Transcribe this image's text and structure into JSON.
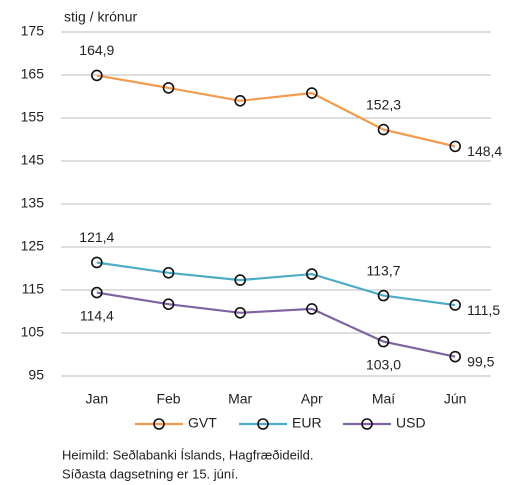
{
  "chart_data": {
    "type": "line",
    "y_label": "stig / krónur",
    "categories": [
      "Jan",
      "Feb",
      "Mar",
      "Apr",
      "Maí",
      "Jún"
    ],
    "series": [
      {
        "name": "GVT",
        "color": "#f39a4c",
        "values": [
          164.9,
          162.0,
          159.0,
          160.8,
          152.3,
          148.4
        ],
        "value_labels": [
          "164,9",
          null,
          null,
          null,
          "152,3",
          "148,4"
        ]
      },
      {
        "name": "EUR",
        "color": "#4bacc6",
        "values": [
          121.4,
          119.0,
          117.3,
          118.7,
          113.7,
          111.5
        ],
        "value_labels": [
          "121,4",
          null,
          null,
          null,
          "113,7",
          "111,5"
        ]
      },
      {
        "name": "USD",
        "color": "#8064a2",
        "values": [
          114.4,
          111.7,
          109.7,
          110.6,
          103.0,
          99.5
        ],
        "value_labels": [
          "114,4",
          null,
          null,
          null,
          "103,0",
          "99,5"
        ]
      }
    ],
    "ylim": [
      95,
      175
    ],
    "yticks": [
      95,
      105,
      115,
      125,
      135,
      145,
      155,
      165,
      175
    ],
    "grid": true,
    "legend": "bottom",
    "notes": [
      "Heimild: Seðlabanki Íslands, Hagfræðideild.",
      "Síðasta dagsetning er 15. júní."
    ]
  }
}
